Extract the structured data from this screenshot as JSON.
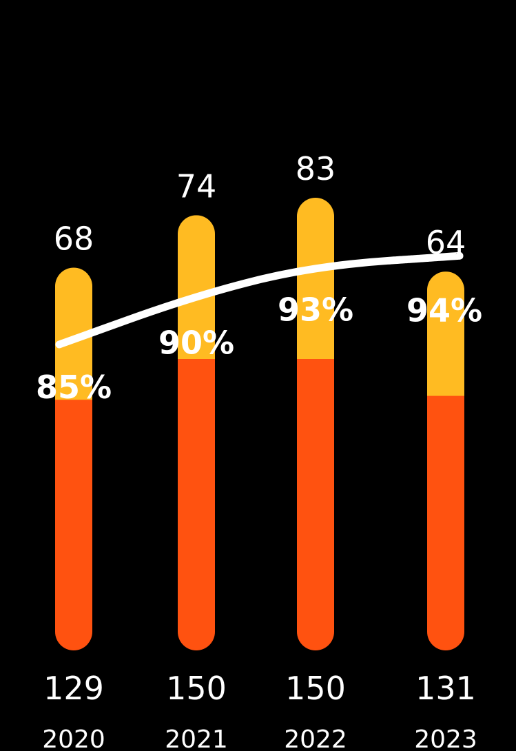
{
  "chart_data": {
    "type": "bar",
    "stacked": true,
    "categories": [
      "2020",
      "2021",
      "2022",
      "2023"
    ],
    "series": [
      {
        "values": [
          129,
          150,
          150,
          131
        ],
        "color": "#ff5210"
      },
      {
        "values": [
          68,
          74,
          83,
          64
        ],
        "color": "#ffbb22"
      }
    ],
    "line": {
      "values": [
        85,
        90,
        93,
        94
      ],
      "labels": [
        "85%",
        "90%",
        "93%",
        "94%"
      ],
      "color": "#ffffff"
    },
    "bottom_labels": [
      "129",
      "150",
      "150",
      "131"
    ],
    "top_labels": [
      "68",
      "74",
      "83",
      "64"
    ],
    "year_labels": [
      "2020",
      "2021",
      "2022",
      "2023"
    ],
    "background": "#000000",
    "grid": false,
    "axes_visible": false
  }
}
